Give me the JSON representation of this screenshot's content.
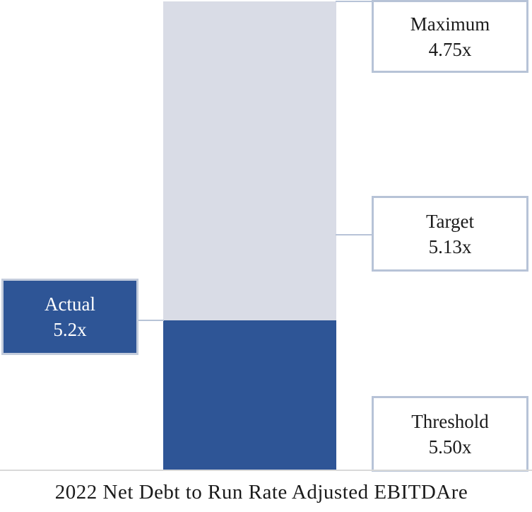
{
  "colors": {
    "bar_blue": "#2e5596",
    "bar_gray": "#d9dce6",
    "box_border": "#b7c3d7",
    "axis_line": "#d9d9d9",
    "text_dark": "#1a1a1a",
    "text_light": "#ffffff"
  },
  "chart_data": {
    "type": "bar",
    "title": "",
    "xlabel": "2022 Net Debt to Run Rate Adjusted EBITDAre",
    "orientation": "vertical",
    "description": "Single stacked column: dark blue lower segment (actual leverage attained) with light gray remainder above, scale runs from Maximum 4.75x at top of column to Threshold 5.50x at baseline; callout boxes mark levels",
    "axis_range_top": 4.75,
    "axis_range_bottom": 5.5,
    "grid": false,
    "legend": false,
    "callouts": {
      "maximum": {
        "label": "Maximum",
        "value": "4.75x"
      },
      "target": {
        "label": "Target",
        "value": "5.13x"
      },
      "actual": {
        "label": "Actual",
        "value": "5.2x"
      },
      "threshold": {
        "label": "Threshold",
        "value": "5.50x"
      }
    },
    "numeric": {
      "maximum": 4.75,
      "target": 5.13,
      "actual": 5.2,
      "threshold": 5.5
    }
  }
}
